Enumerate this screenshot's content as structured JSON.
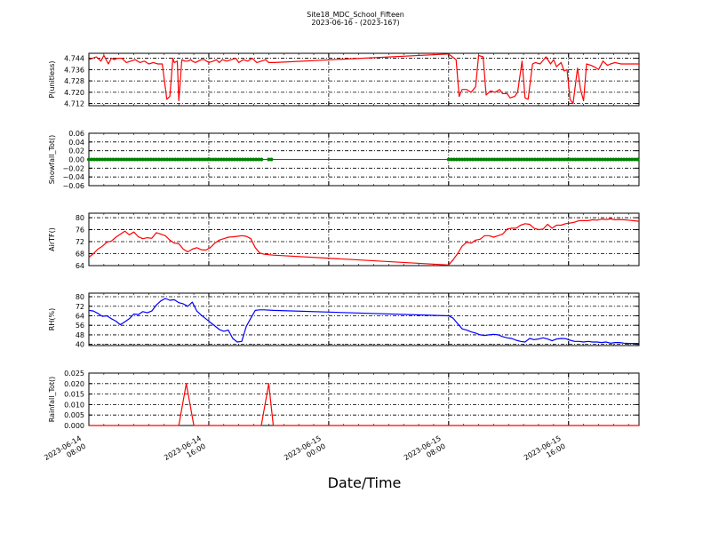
{
  "figure": {
    "title": "Site18_MDC_School_Fifteen",
    "subtitle": "2023-06-16 - (2023-167)",
    "xlabel": "Date/Time",
    "x_tick_labels": [
      [
        "2023-06-14",
        "08:00"
      ],
      [
        "2023-06-14",
        "16:00"
      ],
      [
        "2023-06-15",
        "00:00"
      ],
      [
        "2023-06-15",
        "08:00"
      ],
      [
        "2023-06-15",
        "16:00"
      ]
    ],
    "x_ticks_hours": [
      0,
      8,
      16,
      24,
      32
    ],
    "x_range_hours": [
      0,
      36.7
    ],
    "grid": true,
    "colors": {
      "pressure": "#ff0000",
      "snow": "#008000",
      "temp": "#ff0000",
      "rh": "#0000ff",
      "rain": "#ff0000"
    }
  },
  "chart_data": [
    {
      "type": "line",
      "ylabel": "P(unitless)",
      "ylim": [
        4.7105,
        4.7475
      ],
      "yticks": [
        4.712,
        4.72,
        4.728,
        4.736,
        4.744
      ],
      "ytick_labels": [
        "4.712",
        "4.720",
        "4.728",
        "4.736",
        "4.744"
      ],
      "series": [
        {
          "x": [
            0,
            0.5,
            0.8,
            1.0,
            1.3,
            1.5,
            1.7,
            1.9,
            2.2,
            2.5,
            2.8,
            3.1,
            3.4,
            3.7,
            4.0,
            4.3,
            4.6,
            4.9,
            5.2,
            5.4,
            5.6,
            5.7,
            5.9,
            6.0,
            6.2,
            6.4,
            6.6,
            6.8,
            6.9,
            7.1,
            7.3,
            7.5,
            7.7,
            8.0,
            8.3,
            8.5,
            8.7,
            8.9,
            9.2,
            9.5,
            9.8,
            10.0,
            10.3,
            10.6,
            10.9,
            11.2,
            11.5,
            11.8,
            12.0,
            12.4,
            24.0,
            24.5,
            24.7,
            24.9,
            25.2,
            25.5,
            25.8,
            26.0,
            26.3,
            26.5,
            26.8,
            27.1,
            27.4,
            27.6,
            27.9,
            28.1,
            28.4,
            28.6,
            28.9,
            29.1,
            29.3,
            29.6,
            29.8,
            30.1,
            30.5,
            30.8,
            31.0,
            31.2,
            31.5,
            31.7,
            31.9,
            32.1,
            32.3,
            32.6,
            32.8,
            33.0,
            33.2,
            33.5,
            33.7,
            34.0,
            34.3,
            34.6,
            34.8,
            35.1,
            35.5,
            35.8,
            36.7
          ],
          "values": [
            4.743,
            4.745,
            4.742,
            4.746,
            4.74,
            4.744,
            4.743,
            4.744,
            4.744,
            4.741,
            4.742,
            4.743,
            4.741,
            4.742,
            4.74,
            4.741,
            4.74,
            4.74,
            4.715,
            4.717,
            4.744,
            4.741,
            4.742,
            4.714,
            4.743,
            4.742,
            4.742,
            4.743,
            4.742,
            4.741,
            4.742,
            4.743,
            4.743,
            4.741,
            4.742,
            4.743,
            4.741,
            4.743,
            4.742,
            4.743,
            4.744,
            4.741,
            4.743,
            4.742,
            4.744,
            4.741,
            4.742,
            4.743,
            4.741,
            4.741,
            4.747,
            4.743,
            4.717,
            4.722,
            4.722,
            4.72,
            4.724,
            4.746,
            4.745,
            4.718,
            4.721,
            4.72,
            4.722,
            4.719,
            4.719,
            4.716,
            4.717,
            4.72,
            4.742,
            4.716,
            4.715,
            4.74,
            4.741,
            4.74,
            4.745,
            4.74,
            4.743,
            4.738,
            4.741,
            4.735,
            4.736,
            4.715,
            4.712,
            4.737,
            4.722,
            4.714,
            4.74,
            4.739,
            4.738,
            4.736,
            4.742,
            4.739,
            4.74,
            4.741,
            4.74,
            4.74,
            4.74
          ]
        }
      ]
    },
    {
      "type": "scatter",
      "ylabel": "Snowfall_Tot()",
      "ylim": [
        -0.06,
        0.06
      ],
      "yticks": [
        -0.06,
        -0.04,
        -0.02,
        0.0,
        0.02,
        0.04,
        0.06
      ],
      "ytick_labels": [
        "−0.06",
        "−0.04",
        "−0.02",
        "0.00",
        "0.02",
        "0.04",
        "0.06"
      ],
      "series": [
        {
          "segments": [
            [
              0,
              11.6
            ],
            [
              12.0,
              12.3
            ],
            [
              24.0,
              36.7
            ]
          ],
          "step_hours": 0.18,
          "value": 0.0
        }
      ]
    },
    {
      "type": "line",
      "ylabel": "AirTF()",
      "ylim": [
        64,
        81.5
      ],
      "yticks": [
        64,
        68,
        72,
        76,
        80
      ],
      "ytick_labels": [
        "64",
        "68",
        "72",
        "76",
        "80"
      ],
      "series": [
        {
          "x": [
            0,
            0.3,
            0.6,
            0.9,
            1.2,
            1.5,
            1.8,
            2.1,
            2.4,
            2.7,
            3.0,
            3.3,
            3.6,
            3.9,
            4.2,
            4.5,
            4.8,
            5.1,
            5.4,
            5.7,
            6.0,
            6.3,
            6.6,
            6.9,
            7.2,
            7.5,
            7.8,
            8.1,
            8.4,
            8.7,
            9.0,
            9.3,
            9.6,
            9.9,
            10.2,
            10.5,
            10.8,
            11.1,
            11.4,
            11.7,
            12.3,
            24.0,
            24.3,
            24.6,
            24.9,
            25.2,
            25.5,
            25.8,
            26.1,
            26.4,
            26.7,
            27.0,
            27.3,
            27.6,
            27.9,
            28.2,
            28.5,
            28.8,
            29.1,
            29.4,
            29.7,
            30.0,
            30.3,
            30.6,
            30.9,
            31.2,
            31.5,
            31.8,
            32.1,
            32.4,
            32.7,
            33.0,
            33.3,
            33.6,
            33.9,
            34.2,
            34.5,
            34.8,
            35.1,
            35.4,
            35.7,
            36.0,
            36.3,
            36.7
          ],
          "values": [
            66.8,
            68,
            69.5,
            70.5,
            71.8,
            72.2,
            73.5,
            74.5,
            75.5,
            74.3,
            75.2,
            73.6,
            73,
            73.3,
            73.1,
            75,
            74.5,
            74,
            72.5,
            71.5,
            71.3,
            69.5,
            68.6,
            69.5,
            70,
            69.3,
            69.2,
            70,
            71.5,
            72.5,
            73,
            73.5,
            73.6,
            73.8,
            74,
            73.8,
            73,
            70,
            68.2,
            67.8,
            67.5,
            64.2,
            66,
            68,
            70.5,
            71.8,
            71.5,
            72.5,
            72.8,
            74,
            74,
            73.5,
            74,
            74.5,
            76.2,
            76.5,
            76.5,
            77.5,
            78,
            77.8,
            76.5,
            76,
            76.2,
            77.8,
            76.5,
            77.5,
            77.5,
            78,
            78.2,
            78.5,
            79,
            79,
            79,
            79.3,
            79.2,
            79.5,
            79.4,
            79.6,
            79.3,
            79.4,
            79.3,
            79.2,
            79,
            78.8
          ]
        }
      ]
    },
    {
      "type": "line",
      "ylabel": "RH(%)",
      "ylim": [
        39,
        83
      ],
      "yticks": [
        40,
        48,
        56,
        64,
        72,
        80
      ],
      "ytick_labels": [
        "40",
        "48",
        "56",
        "64",
        "72",
        "80"
      ],
      "series": [
        {
          "x": [
            0,
            0.3,
            0.6,
            0.9,
            1.2,
            1.5,
            1.8,
            2.1,
            2.4,
            2.7,
            3.0,
            3.3,
            3.6,
            3.9,
            4.2,
            4.5,
            4.8,
            5.1,
            5.4,
            5.7,
            6.0,
            6.3,
            6.6,
            6.9,
            7.2,
            7.5,
            7.8,
            8.1,
            8.4,
            8.7,
            9.0,
            9.3,
            9.6,
            9.9,
            10.2,
            10.5,
            10.8,
            11.1,
            11.4,
            11.7,
            12.3,
            24.0,
            24.3,
            24.6,
            24.9,
            25.2,
            25.5,
            25.8,
            26.1,
            26.4,
            26.7,
            27.0,
            27.3,
            27.6,
            27.9,
            28.2,
            28.5,
            28.8,
            29.1,
            29.4,
            29.7,
            30.0,
            30.3,
            30.6,
            30.9,
            31.2,
            31.5,
            31.8,
            32.1,
            32.4,
            32.7,
            33.0,
            33.3,
            33.6,
            33.9,
            34.2,
            34.5,
            34.8,
            35.1,
            35.4,
            35.7,
            36.0,
            36.3,
            36.7
          ],
          "values": [
            68.5,
            68,
            66,
            63.5,
            64,
            61.5,
            59.5,
            56.5,
            59,
            61.5,
            65.5,
            65,
            67.5,
            66.5,
            68,
            73,
            76.5,
            78.5,
            77,
            77.5,
            75,
            74,
            72,
            75.5,
            68,
            64.5,
            61.5,
            58.5,
            55.5,
            52.5,
            51,
            52,
            45,
            42,
            42.5,
            55,
            62,
            68.5,
            69,
            69,
            68.5,
            64,
            62,
            57.5,
            53,
            52,
            50.5,
            49.5,
            48,
            47.5,
            48,
            48.5,
            48,
            46.5,
            45.5,
            45,
            43.5,
            42.5,
            42,
            45,
            44,
            44.5,
            45.5,
            44.5,
            43,
            44.5,
            45,
            44.8,
            43.5,
            42.5,
            42.5,
            42,
            42.5,
            42,
            42,
            41.5,
            42,
            41,
            41.5,
            41.5,
            41,
            40.8,
            40.8,
            40.8
          ]
        }
      ]
    },
    {
      "type": "line",
      "ylabel": "Rainfall_Tot()",
      "ylim": [
        0,
        0.025
      ],
      "yticks": [
        0,
        0.005,
        0.01,
        0.015,
        0.02,
        0.025
      ],
      "ytick_labels": [
        "0.000",
        "0.005",
        "0.010",
        "0.015",
        "0.020",
        "0.025"
      ],
      "series": [
        {
          "x": [
            0,
            6.0,
            6.5,
            7.0,
            11.5,
            12.0,
            12.3,
            36.7
          ],
          "values": [
            0,
            0,
            0.02,
            0,
            0,
            0.02,
            0,
            0
          ]
        }
      ]
    }
  ]
}
